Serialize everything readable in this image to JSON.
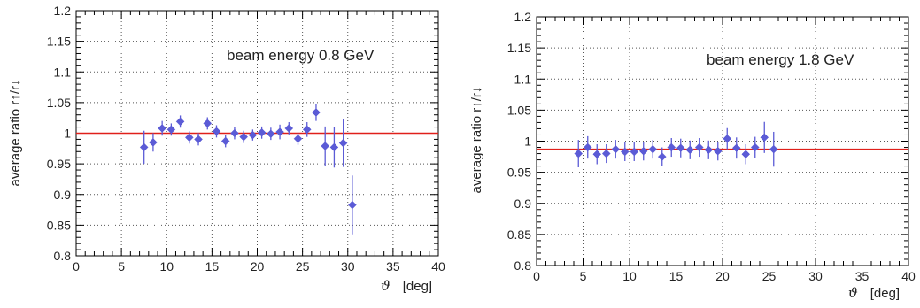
{
  "chart_data": [
    {
      "type": "scatter",
      "title": "",
      "annotation": "beam energy  0.8 GeV",
      "xlabel_symbol": "ϑ",
      "xlabel_unit": "[deg]",
      "ylabel": "average ratio  r↑/r↓",
      "xlim": [
        0,
        40
      ],
      "ylim": [
        0.8,
        1.2
      ],
      "xticks": [
        0,
        5,
        10,
        15,
        20,
        25,
        30,
        35,
        40
      ],
      "yticks": [
        0.8,
        0.85,
        0.9,
        0.95,
        1,
        1.05,
        1.1,
        1.15,
        1.2
      ],
      "ytick_labels": [
        "0.8",
        "0.85",
        "0.9",
        "0.95",
        "1",
        "1.05",
        "1.1",
        "1.15",
        "1.2"
      ],
      "grid": true,
      "reference_line": 1.0,
      "points": [
        {
          "x": 7.5,
          "y": 0.977,
          "err": 0.027
        },
        {
          "x": 8.5,
          "y": 0.985,
          "err": 0.015
        },
        {
          "x": 9.5,
          "y": 1.008,
          "err": 0.012
        },
        {
          "x": 10.5,
          "y": 1.006,
          "err": 0.01
        },
        {
          "x": 11.5,
          "y": 1.019,
          "err": 0.01
        },
        {
          "x": 12.5,
          "y": 0.993,
          "err": 0.01
        },
        {
          "x": 13.5,
          "y": 0.99,
          "err": 0.01
        },
        {
          "x": 14.5,
          "y": 1.016,
          "err": 0.01
        },
        {
          "x": 15.5,
          "y": 1.003,
          "err": 0.01
        },
        {
          "x": 16.5,
          "y": 0.987,
          "err": 0.01
        },
        {
          "x": 17.5,
          "y": 1.0,
          "err": 0.01
        },
        {
          "x": 18.5,
          "y": 0.994,
          "err": 0.01
        },
        {
          "x": 19.5,
          "y": 0.997,
          "err": 0.009
        },
        {
          "x": 20.5,
          "y": 1.001,
          "err": 0.01
        },
        {
          "x": 21.5,
          "y": 0.999,
          "err": 0.01
        },
        {
          "x": 22.5,
          "y": 1.002,
          "err": 0.012
        },
        {
          "x": 23.5,
          "y": 1.008,
          "err": 0.01
        },
        {
          "x": 24.5,
          "y": 0.991,
          "err": 0.01
        },
        {
          "x": 25.5,
          "y": 1.006,
          "err": 0.012
        },
        {
          "x": 26.5,
          "y": 1.034,
          "err": 0.014
        },
        {
          "x": 27.5,
          "y": 0.979,
          "err": 0.032
        },
        {
          "x": 28.5,
          "y": 0.977,
          "err": 0.033
        },
        {
          "x": 29.5,
          "y": 0.984,
          "err": 0.039
        },
        {
          "x": 30.5,
          "y": 0.883,
          "err": 0.048
        }
      ]
    },
    {
      "type": "scatter",
      "title": "",
      "annotation": "beam energy  1.8 GeV",
      "xlabel_symbol": "ϑ",
      "xlabel_unit": "[deg]",
      "ylabel": "average ratio  r↑/r↓",
      "xlim": [
        0,
        40
      ],
      "ylim": [
        0.8,
        1.2
      ],
      "xticks": [
        0,
        5,
        10,
        15,
        20,
        25,
        30,
        35,
        40
      ],
      "yticks": [
        0.8,
        0.85,
        0.9,
        0.95,
        1,
        1.05,
        1.1,
        1.15,
        1.2
      ],
      "ytick_labels": [
        "0.8",
        "0.85",
        "0.9",
        "0.95",
        "1",
        "1.05",
        "1.1",
        "1.15",
        "1.2"
      ],
      "grid": true,
      "reference_line": 0.987,
      "points": [
        {
          "x": 4.5,
          "y": 0.98,
          "err": 0.022
        },
        {
          "x": 5.5,
          "y": 0.99,
          "err": 0.018
        },
        {
          "x": 6.5,
          "y": 0.979,
          "err": 0.016
        },
        {
          "x": 7.5,
          "y": 0.98,
          "err": 0.015
        },
        {
          "x": 8.5,
          "y": 0.987,
          "err": 0.015
        },
        {
          "x": 9.5,
          "y": 0.983,
          "err": 0.015
        },
        {
          "x": 10.5,
          "y": 0.983,
          "err": 0.015
        },
        {
          "x": 11.5,
          "y": 0.984,
          "err": 0.015
        },
        {
          "x": 12.5,
          "y": 0.987,
          "err": 0.015
        },
        {
          "x": 13.5,
          "y": 0.975,
          "err": 0.015
        },
        {
          "x": 14.5,
          "y": 0.99,
          "err": 0.015
        },
        {
          "x": 15.5,
          "y": 0.989,
          "err": 0.015
        },
        {
          "x": 16.5,
          "y": 0.986,
          "err": 0.015
        },
        {
          "x": 17.5,
          "y": 0.99,
          "err": 0.015
        },
        {
          "x": 18.5,
          "y": 0.986,
          "err": 0.015
        },
        {
          "x": 19.5,
          "y": 0.984,
          "err": 0.015
        },
        {
          "x": 20.5,
          "y": 1.004,
          "err": 0.017
        },
        {
          "x": 21.5,
          "y": 0.989,
          "err": 0.017
        },
        {
          "x": 22.5,
          "y": 0.979,
          "err": 0.016
        },
        {
          "x": 23.5,
          "y": 0.99,
          "err": 0.017
        },
        {
          "x": 24.5,
          "y": 1.006,
          "err": 0.025
        },
        {
          "x": 25.5,
          "y": 0.987,
          "err": 0.028
        }
      ]
    }
  ],
  "colors": {
    "marker": "#5b5bd6",
    "reference_line": "#e0201b",
    "grid": "#555555",
    "frame": "#000000"
  }
}
